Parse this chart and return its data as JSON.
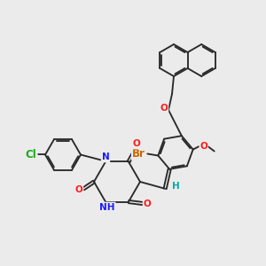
{
  "bg_color": "#ebebeb",
  "bond_color": "#2a2a2a",
  "atom_colors": {
    "N": "#1a1aff",
    "O": "#ff1a1a",
    "Cl": "#1aaa1a",
    "Br": "#cc6600",
    "H_label": "#00aaaa",
    "C": "#2a2a2a"
  },
  "font_size": 7.5,
  "line_width": 1.35
}
